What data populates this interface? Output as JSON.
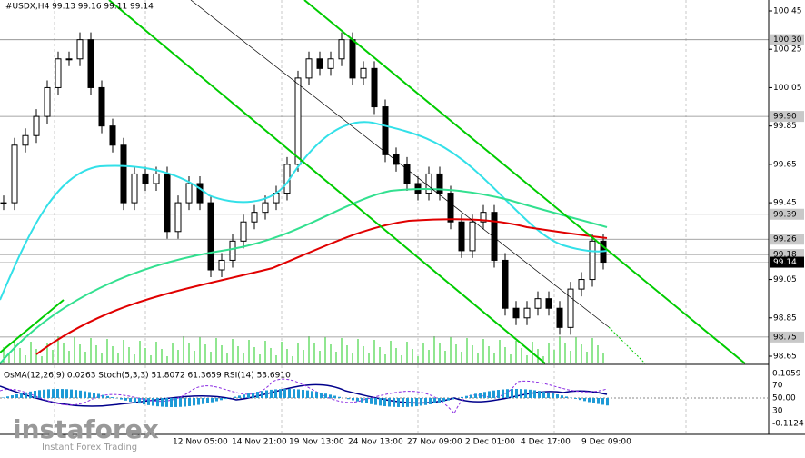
{
  "header": "#USDX,H4  99.13 99.16 99.11 99.14",
  "price_axis": {
    "ylim": [
      98.65,
      100.45
    ],
    "ticks": [
      100.45,
      100.25,
      100.05,
      99.85,
      99.65,
      99.45,
      99.05,
      98.85,
      98.65
    ]
  },
  "levels": [
    {
      "value": 100.3,
      "label": "100.30"
    },
    {
      "value": 99.9,
      "label": "99.90"
    },
    {
      "value": 99.39,
      "label": "99.39"
    },
    {
      "value": 99.26,
      "label": "99.26"
    },
    {
      "value": 99.18,
      "label": "99.18"
    },
    {
      "value": 98.75,
      "label": "98.75"
    }
  ],
  "current": {
    "value": 99.14,
    "label": "99.14"
  },
  "indicator": {
    "text": "OsMA(12,26,9) 0.0263  Stoch(5,3,3) 51.8072 61.3659  RSI(14) 53.6910",
    "scale": [
      "0.1059",
      "70",
      "50.00",
      "30",
      "-0.1124"
    ]
  },
  "dates": [
    "12 Nov 05:00",
    "14 Nov 21:00",
    "19 Nov 13:00",
    "24 Nov 13:00",
    "27 Nov 09:00",
    "2 Dec 01:00",
    "4 Dec 17:00",
    "9 Dec 09:00"
  ],
  "watermark": {
    "brand": "instaforex",
    "tagline": "Instant Forex Trading"
  },
  "candles": {
    "closes": [
      99.45,
      99.75,
      99.8,
      99.9,
      100.05,
      100.2,
      100.2,
      100.3,
      100.05,
      99.85,
      99.75,
      99.45,
      99.6,
      99.55,
      99.6,
      99.3,
      99.45,
      99.55,
      99.45,
      99.1,
      99.15,
      99.25,
      99.35,
      99.4,
      99.45,
      99.5,
      99.65,
      100.1,
      100.2,
      100.15,
      100.2,
      100.3,
      100.1,
      100.15,
      99.95,
      99.7,
      99.65,
      99.55,
      99.5,
      99.6,
      99.5,
      99.35,
      99.2,
      99.35,
      99.4,
      99.15,
      98.9,
      98.85,
      98.9,
      98.95,
      98.9,
      98.8,
      99.0,
      99.05,
      99.25,
      99.14
    ]
  }
}
